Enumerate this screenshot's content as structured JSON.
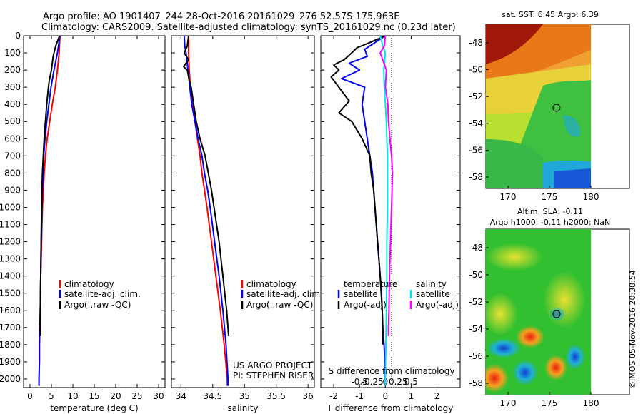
{
  "title_line1": "Argo profile: AO 1901407_244 28-Oct-2016 20161029_276 52.57S 175.963E",
  "title_line2": "Climatology: CARS2009. Satellite-adjusted climatology: synTS_20161029.nc (0.23d later)",
  "depth_ticks": [
    0,
    100,
    200,
    300,
    400,
    500,
    600,
    700,
    800,
    900,
    1000,
    1100,
    1200,
    1300,
    1400,
    1500,
    1600,
    1700,
    1800,
    1900,
    2000
  ],
  "colors": {
    "climatology": "#ff0000",
    "satellite": "#0000ff",
    "argo": "#000000",
    "cyan": "#00e5e5",
    "magenta": "#ff00ff"
  },
  "chart_data": [
    {
      "type": "line",
      "xlabel": "temperature (deg C)",
      "xticks": [
        0,
        5,
        10,
        15,
        20,
        25,
        30
      ],
      "xlim": [
        -1.5,
        31.5
      ],
      "ylim": [
        0,
        2050
      ],
      "legend": [
        "climatology",
        "satellite-adj. clim.",
        "Argo(..raw -QC)"
      ],
      "series": [
        {
          "name": "climatology",
          "color": "#ff0000",
          "depth": [
            0,
            100,
            200,
            300,
            400,
            500,
            600,
            700,
            800,
            900,
            1000,
            1200,
            1400,
            1600,
            1700,
            1800,
            1900,
            2000,
            2040
          ],
          "values": [
            7.0,
            6.8,
            6.4,
            5.9,
            5.2,
            4.6,
            4.0,
            3.6,
            3.3,
            3.1,
            2.9,
            2.7,
            2.5,
            2.4,
            2.3,
            2.2,
            2.2,
            2.1,
            2.1
          ]
        },
        {
          "name": "satellite-adj. clim.",
          "color": "#0000ff",
          "depth": [
            0,
            100,
            200,
            300,
            400,
            500,
            600,
            700,
            800,
            900,
            1000,
            1200,
            1400,
            1600,
            1700,
            1800,
            1900,
            2000,
            2040
          ],
          "values": [
            7.0,
            6.4,
            5.6,
            4.9,
            4.4,
            3.9,
            3.5,
            3.2,
            3.0,
            2.9,
            2.8,
            2.6,
            2.5,
            2.4,
            2.3,
            2.2,
            2.2,
            2.1,
            2.1
          ]
        },
        {
          "name": "Argo(..raw -QC)",
          "color": "#000000",
          "depth": [
            0,
            60,
            120,
            160,
            200,
            260,
            300,
            400,
            500,
            600,
            700,
            800,
            900,
            1000,
            1200,
            1400,
            1600,
            1700,
            1750
          ],
          "values": [
            6.9,
            6.0,
            5.4,
            5.2,
            5.0,
            4.5,
            4.3,
            3.9,
            3.6,
            3.3,
            3.1,
            2.9,
            2.8,
            2.7,
            2.6,
            2.5,
            2.4,
            2.4,
            2.4
          ]
        }
      ]
    },
    {
      "type": "line",
      "xlabel": "salinity",
      "xticks": [
        34,
        34.5,
        35,
        35.5,
        36
      ],
      "xticklabels": [
        "34",
        "34.5",
        "35",
        "35.5",
        "36"
      ],
      "xlim": [
        33.85,
        36.1
      ],
      "ylim": [
        0,
        2050
      ],
      "legend": [
        "climatology",
        "satellite-adj. clim.",
        "Argo(..raw -QC)"
      ],
      "series": [
        {
          "name": "climatology",
          "color": "#ff0000",
          "depth": [
            0,
            100,
            200,
            300,
            400,
            500,
            600,
            700,
            800,
            900,
            1000,
            1200,
            1400,
            1600,
            1800,
            2000,
            2040
          ],
          "values": [
            34.12,
            34.12,
            34.13,
            34.15,
            34.18,
            34.22,
            34.26,
            34.3,
            34.33,
            34.37,
            34.41,
            34.48,
            34.55,
            34.62,
            34.68,
            34.73,
            34.73
          ]
        },
        {
          "name": "satellite-adj. clim.",
          "color": "#0000ff",
          "depth": [
            0,
            60,
            100,
            200,
            300,
            400,
            500,
            600,
            700,
            800,
            900,
            1000,
            1200,
            1400,
            1600,
            1800,
            2000,
            2040
          ],
          "values": [
            34.05,
            34.06,
            34.08,
            34.11,
            34.14,
            34.17,
            34.22,
            34.27,
            34.33,
            34.37,
            34.42,
            34.46,
            34.53,
            34.6,
            34.66,
            34.71,
            34.74,
            34.74
          ]
        },
        {
          "name": "Argo(..raw -QC)",
          "color": "#000000",
          "depth": [
            0,
            60,
            100,
            140,
            180,
            200,
            260,
            300,
            400,
            500,
            600,
            700,
            800,
            900,
            1000,
            1200,
            1400,
            1600,
            1750
          ],
          "values": [
            34.12,
            34.1,
            34.05,
            34.12,
            34.04,
            34.1,
            34.13,
            34.16,
            34.2,
            34.24,
            34.3,
            34.38,
            34.43,
            34.48,
            34.52,
            34.6,
            34.66,
            34.72,
            34.75
          ]
        }
      ]
    },
    {
      "type": "line",
      "xlabel": "T difference from climatology",
      "xlabel_top": "S difference from climatology",
      "xticks": [
        -2,
        -1,
        0,
        1,
        2
      ],
      "xlim": [
        -2.5,
        2.9
      ],
      "sticks": [
        -0.5,
        -0.25,
        0,
        0.25,
        0.5
      ],
      "sticklabels": [
        "-0.5",
        "-0.25",
        "0",
        "0.25",
        "0.5"
      ],
      "ylim": [
        0,
        2050
      ],
      "legend_temperature": [
        "temperature",
        "satellite",
        "Argo(-adj)"
      ],
      "legend_salinity": [
        "salinity",
        "satellite",
        "Argo(-adj)"
      ],
      "series": [
        {
          "name": "satellite",
          "kind": "T",
          "color": "#0000ff",
          "depth": [
            0,
            40,
            80,
            120,
            160,
            200,
            250,
            300,
            400,
            500,
            600,
            700,
            800,
            900,
            1000,
            1100,
            1200,
            1300,
            1400,
            1500,
            1600,
            1700,
            1800,
            1900,
            2000,
            2040
          ],
          "values": [
            0.0,
            -0.4,
            -0.8,
            -0.7,
            -1.4,
            -1.0,
            -1.7,
            -0.8,
            -0.9,
            -0.8,
            -0.7,
            -0.6,
            -0.5,
            -0.45,
            -0.4,
            -0.35,
            -0.3,
            -0.25,
            -0.2,
            -0.15,
            -0.12,
            -0.1,
            -0.05,
            -0.02,
            0.0,
            0.0
          ]
        },
        {
          "name": "Argo(-adj)",
          "kind": "T",
          "color": "#000000",
          "depth": [
            0,
            40,
            70,
            100,
            140,
            170,
            200,
            240,
            280,
            320,
            380,
            450,
            500,
            550,
            600,
            700,
            800,
            900,
            1000,
            1200,
            1400,
            1600,
            1700,
            1800
          ],
          "values": [
            0.0,
            -0.6,
            -1.1,
            -1.3,
            -1.6,
            -2.0,
            -1.8,
            -2.1,
            -1.9,
            -1.7,
            -1.4,
            -1.8,
            -1.3,
            -1.1,
            -0.9,
            -0.6,
            -0.55,
            -0.45,
            -0.4,
            -0.3,
            -0.2,
            -0.12,
            -0.1,
            -0.1
          ]
        },
        {
          "name": "satellite",
          "kind": "S",
          "color": "#00e5e5",
          "depth": [
            0,
            60,
            100,
            200,
            300,
            400,
            500,
            600,
            700,
            800,
            900,
            1000,
            1200,
            1400,
            1600,
            1800,
            2000,
            2040
          ],
          "values": [
            -0.1,
            -0.05,
            0.0,
            -0.03,
            -0.02,
            0.0,
            0.02,
            0.03,
            0.04,
            0.04,
            0.04,
            0.04,
            0.03,
            0.03,
            0.02,
            0.01,
            0.0,
            0.0
          ]
        },
        {
          "name": "Argo(-adj)",
          "kind": "S",
          "color": "#ff00ff",
          "depth": [
            0,
            60,
            100,
            200,
            300,
            400,
            500,
            600,
            700,
            800,
            900,
            1000,
            1200,
            1400,
            1600,
            1700,
            1750
          ],
          "values": [
            0.0,
            -0.02,
            -0.1,
            0.02,
            0.0,
            0.05,
            0.06,
            0.09,
            0.12,
            0.14,
            0.13,
            0.12,
            0.1,
            0.08,
            0.07,
            0.06,
            0.06
          ]
        }
      ]
    }
  ],
  "map_sst": {
    "title": "sat. SST: 6.45 Argo: 6.39",
    "yticks": [
      "-48",
      "-50",
      "-52",
      "-54",
      "-56",
      "-58"
    ],
    "xticks": [
      "170",
      "175",
      "180"
    ]
  },
  "map_sla": {
    "title1": "Altim. SLA: -0.11",
    "title2": "Argo h1000: -0.11 h2000: NaN",
    "yticks": [
      "-48",
      "-50",
      "-52",
      "-54",
      "-56",
      "-58"
    ],
    "xticks": [
      "170",
      "175",
      "180"
    ]
  },
  "side_text": "©IMOS 05-Nov-2016 20:38:54",
  "project_line1": "US ARGO PROJECT",
  "project_line2": "PI: STEPHEN RISER"
}
